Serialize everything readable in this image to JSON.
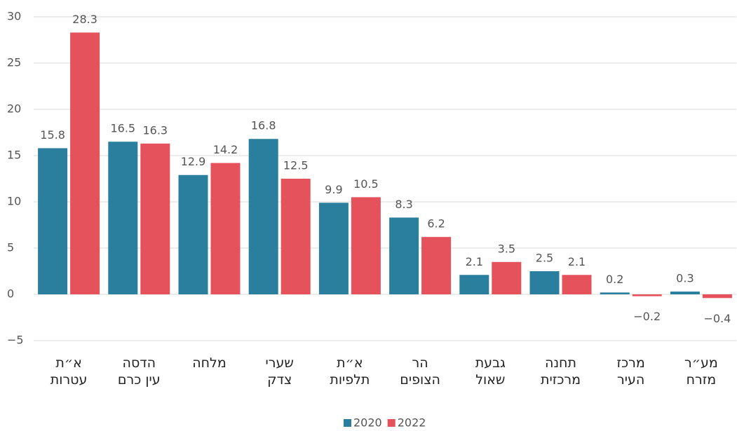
{
  "chart_data": {
    "type": "bar",
    "categories": [
      "א״ת\nעטרות",
      "הדסה\nעין כרם",
      "מלחה",
      "שערי\nצדק",
      "א״ת\nתלפיות",
      "הר\nהצופים",
      "גבעת\nשאול",
      "תחנה\nמרכזית",
      "מרכז\nהעיר",
      "מע״ר\nמזרח"
    ],
    "series": [
      {
        "name": "2020",
        "color": "#2a7f9e",
        "values": [
          15.8,
          16.5,
          12.9,
          16.8,
          9.9,
          8.3,
          2.1,
          2.5,
          0.2,
          0.3
        ]
      },
      {
        "name": "2022",
        "color": "#e5525c",
        "values": [
          28.3,
          16.3,
          14.2,
          12.5,
          10.5,
          6.2,
          3.5,
          2.1,
          -0.2,
          -0.4
        ],
        "value_labels": [
          "28.3",
          "16.3",
          "14.2",
          "12.5",
          "10.5",
          "6.2",
          "3.5",
          "2.1",
          "−0.2",
          "−0.4"
        ]
      }
    ],
    "ylim": [
      -5,
      30
    ],
    "yticks": [
      {
        "value": -5,
        "label": "−5"
      },
      0,
      5,
      10,
      15,
      20,
      25,
      30
    ],
    "grid": true,
    "legend": "bottom"
  }
}
